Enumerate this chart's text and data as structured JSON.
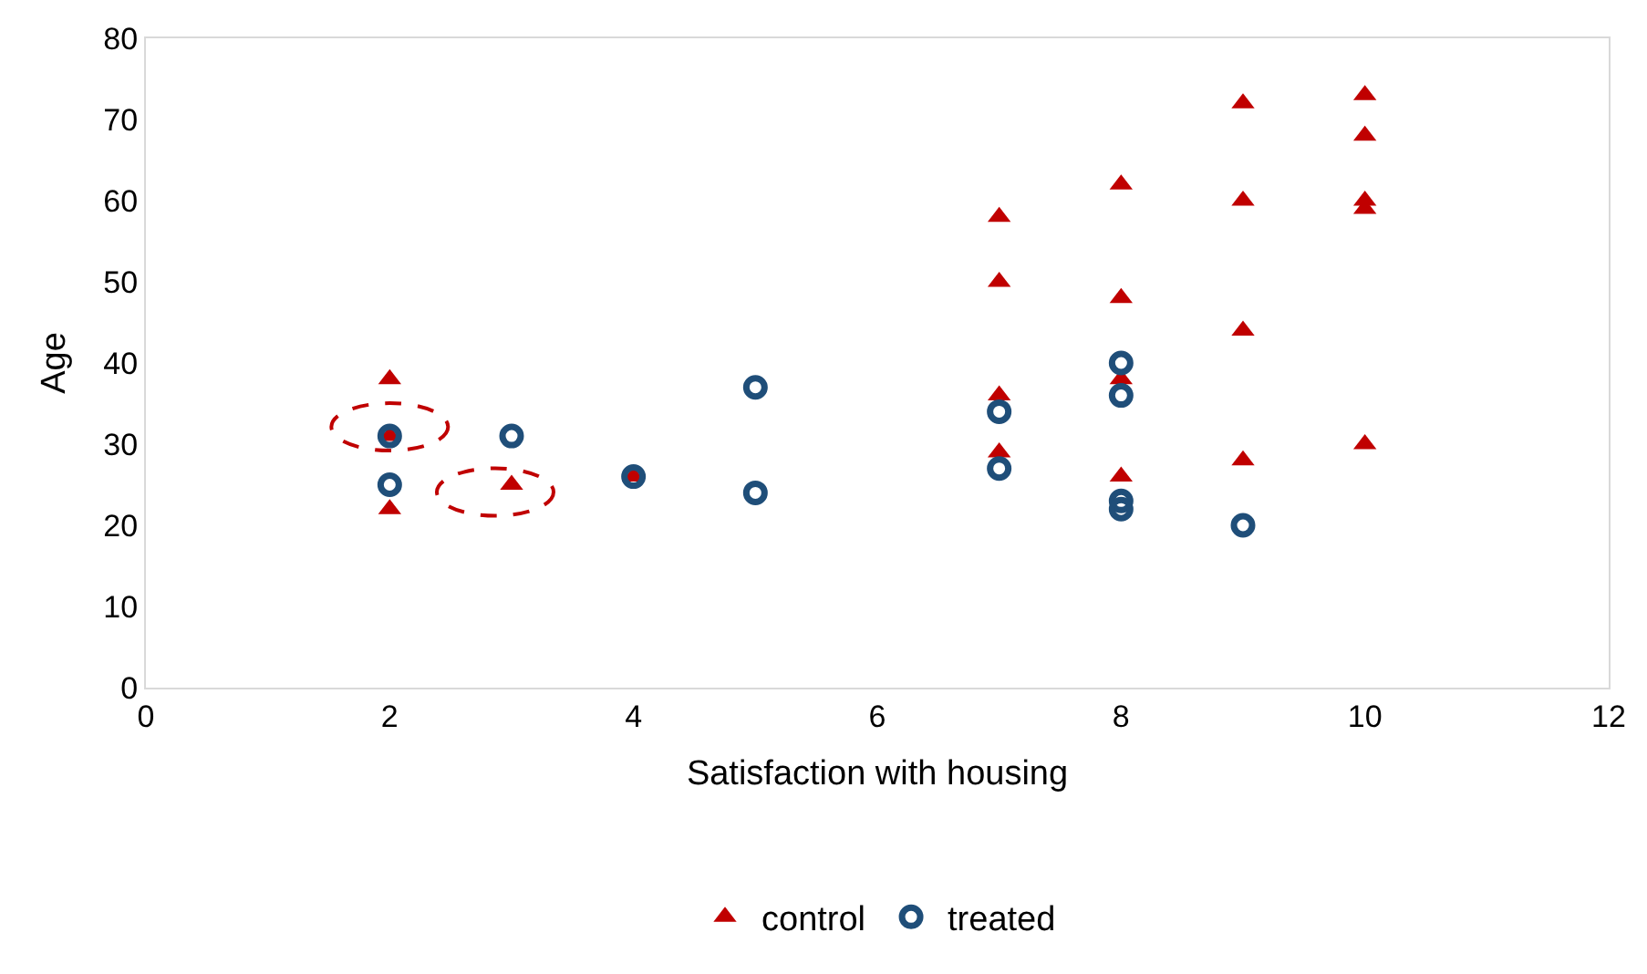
{
  "chart_data": {
    "type": "scatter",
    "xlabel": "Satisfaction with housing",
    "ylabel": "Age",
    "xlim": [
      0,
      12
    ],
    "xticks": [
      0,
      2,
      4,
      6,
      8,
      10,
      12
    ],
    "ylim": [
      0,
      80
    ],
    "yticks": [
      0,
      10,
      20,
      30,
      40,
      50,
      60,
      70,
      80
    ],
    "grid": false,
    "legend": "bottom",
    "series": [
      {
        "name": "control",
        "color": "#c00000",
        "marker": "triangle",
        "x": [
          2,
          2,
          2,
          3,
          4,
          7,
          7,
          7,
          7,
          8,
          8,
          8,
          8,
          9,
          9,
          9,
          9,
          10,
          10,
          10,
          10,
          10
        ],
        "values": [
          38,
          31,
          22,
          25,
          26,
          58,
          50,
          36,
          29,
          62,
          48,
          38,
          26,
          72,
          60,
          44,
          28,
          73,
          68,
          60,
          59,
          30
        ]
      },
      {
        "name": "treated",
        "color": "#1f4e79",
        "marker": "circle",
        "x": [
          2,
          2,
          3,
          4,
          5,
          5,
          7,
          7,
          8,
          8,
          8,
          8,
          9
        ],
        "values": [
          31,
          25,
          31,
          26,
          37,
          24,
          34,
          27,
          40,
          36,
          23,
          22,
          20
        ]
      }
    ]
  }
}
